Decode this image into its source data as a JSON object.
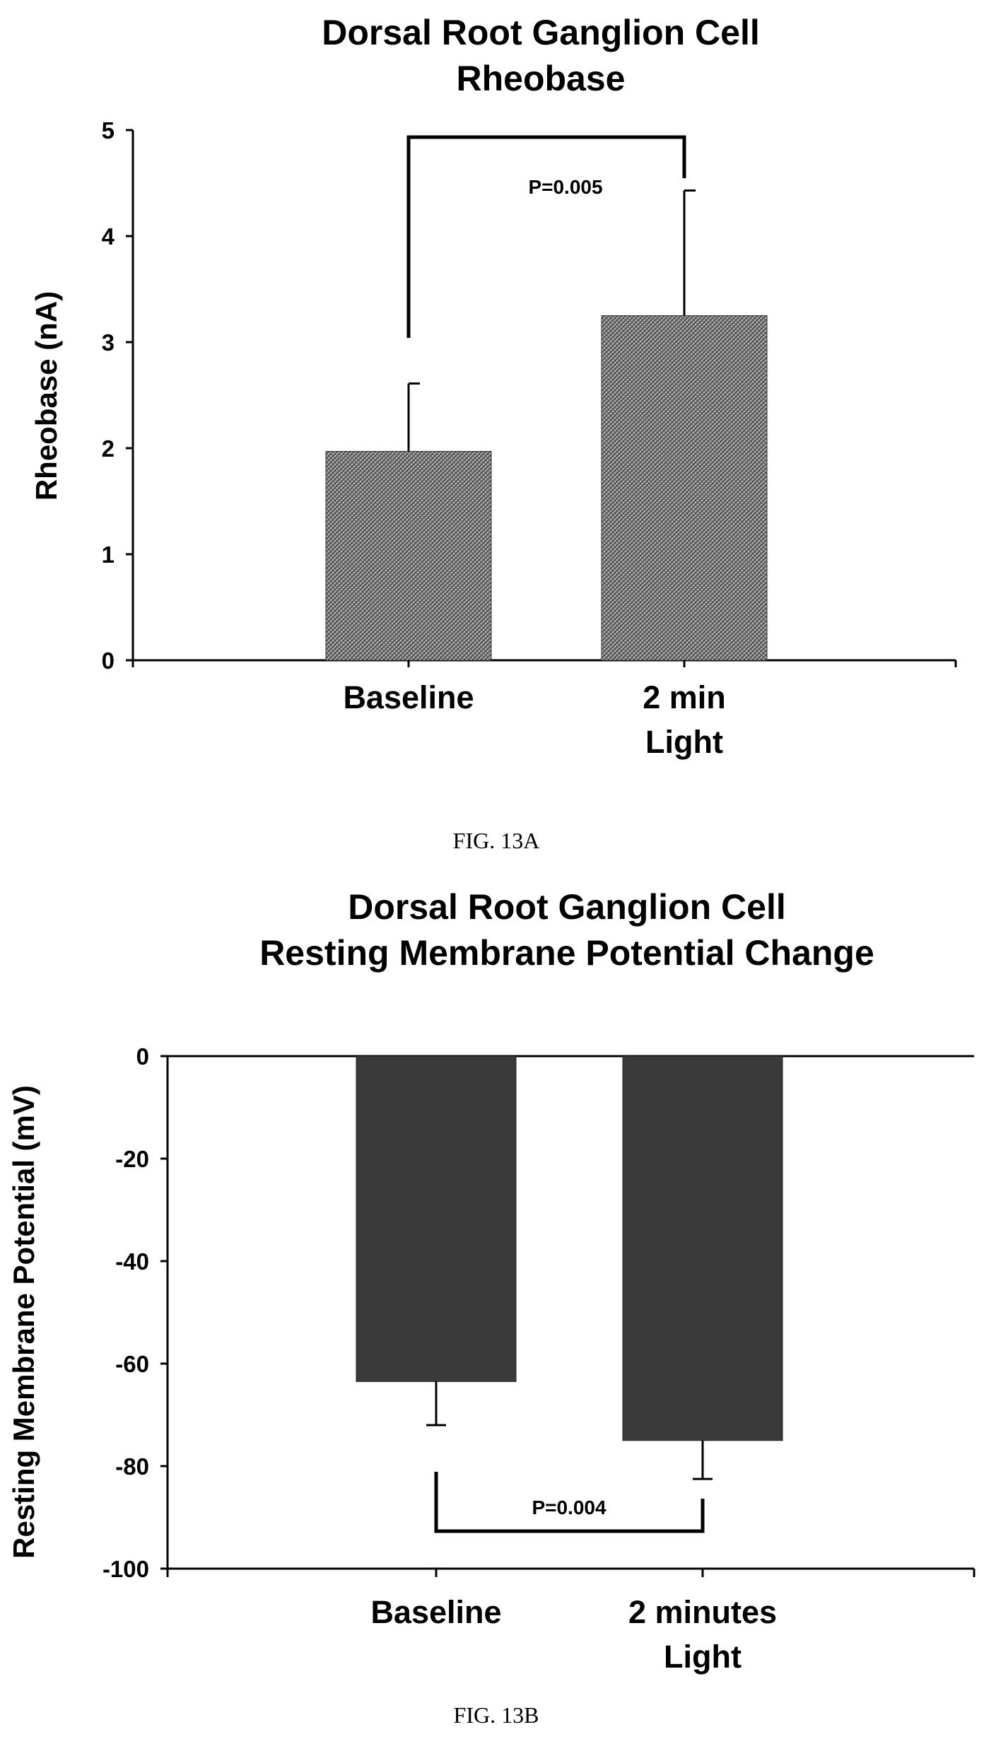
{
  "chart_data": [
    {
      "type": "bar",
      "title_lines": [
        "Dorsal Root Ganglion Cell",
        "Rheobase"
      ],
      "ylabel": "Rheobase (nA)",
      "xlabel": "",
      "categories": [
        [
          "Baseline"
        ],
        [
          "2 min",
          "Light"
        ]
      ],
      "values": [
        1.97,
        3.25
      ],
      "error_up": [
        0.64,
        1.18
      ],
      "ylim": [
        0,
        5
      ],
      "yticks": [
        "0",
        "1",
        "2",
        "3",
        "4",
        "5"
      ],
      "significance": {
        "label": "P=0.005",
        "between": [
          0,
          1
        ]
      },
      "bar_fill": "crosshatch-gray",
      "grid": false,
      "caption": "FIG. 13A"
    },
    {
      "type": "bar",
      "title_lines": [
        "Dorsal Root Ganglion Cell",
        "Resting Membrane Potential Change"
      ],
      "ylabel": "Resting Membrane Potential (mV)",
      "xlabel": "",
      "categories": [
        [
          "Baseline"
        ],
        [
          "2 minutes",
          "Light"
        ]
      ],
      "values": [
        -63.5,
        -75
      ],
      "error_down": [
        8.5,
        7.5
      ],
      "ylim": [
        -100,
        0
      ],
      "yticks": [
        "0",
        "-20",
        "-40",
        "-60",
        "-80",
        "-100"
      ],
      "significance": {
        "label": "P=0.004",
        "between": [
          0,
          1
        ]
      },
      "bar_fill": "dark-gray",
      "grid": false,
      "caption": "FIG. 13B"
    }
  ],
  "colors": {
    "bar_a": "#9a9a9a",
    "bar_b": "#3a3a3a",
    "ink": "#000000"
  }
}
